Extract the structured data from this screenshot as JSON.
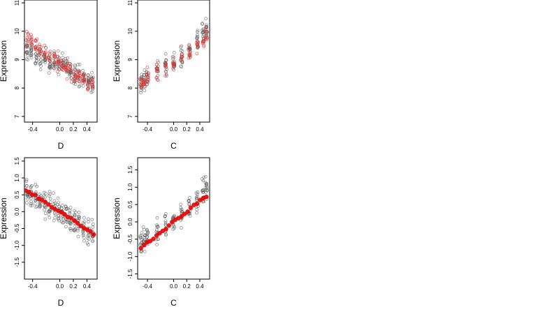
{
  "chart_data": [
    {
      "type": "scatter",
      "xlabel": "D",
      "ylabel": "Expression",
      "xlim": [
        -0.52,
        0.55
      ],
      "ylim": [
        6.8,
        11.1
      ],
      "x_ticks": [
        -0.4,
        0.0,
        0.2,
        0.4
      ],
      "x_tick_labels": [
        "-0.4",
        "0.0",
        "0.2",
        "0.4"
      ],
      "y_ticks": [
        7,
        8,
        9,
        10,
        11
      ],
      "y_tick_labels": [
        "7",
        "8",
        "9",
        "10",
        "11"
      ],
      "grid": false,
      "legend": "none",
      "x_columns": [
        -0.48,
        -0.42,
        -0.35,
        -0.29,
        -0.22,
        -0.15,
        -0.08,
        -0.02,
        0.04,
        0.1,
        0.16,
        0.22,
        0.28,
        0.35,
        0.42,
        0.48
      ],
      "series": [
        {
          "color": "#555555",
          "center": [
            9.3,
            9.25,
            9.15,
            9.05,
            9.0,
            8.95,
            8.9,
            8.85,
            8.8,
            8.75,
            8.65,
            8.55,
            8.45,
            8.35,
            8.25,
            8.15
          ],
          "spread": 0.6
        },
        {
          "color": "#e03030",
          "center": [
            9.8,
            9.7,
            9.55,
            9.4,
            9.25,
            9.1,
            9.0,
            8.9,
            8.8,
            8.7,
            8.6,
            8.5,
            8.4,
            8.3,
            8.2,
            8.1
          ],
          "spread": 0.5
        }
      ]
    },
    {
      "type": "scatter",
      "xlabel": "C",
      "ylabel": "Expression",
      "xlim": [
        -0.55,
        0.55
      ],
      "ylim": [
        6.8,
        11.1
      ],
      "x_ticks": [
        -0.4,
        0.0,
        0.2,
        0.4
      ],
      "x_tick_labels": [
        "-0.4",
        "0.0",
        "0.2",
        "0.4"
      ],
      "y_ticks": [
        7,
        8,
        9,
        10,
        11
      ],
      "y_tick_labels": [
        "7",
        "8",
        "9",
        "10",
        "11"
      ],
      "grid": false,
      "legend": "none",
      "x_columns": [
        -0.5,
        -0.45,
        -0.4,
        -0.25,
        -0.12,
        0.0,
        0.12,
        0.24,
        0.36,
        0.45,
        0.5
      ],
      "series": [
        {
          "color": "#555555",
          "center": [
            8.2,
            8.3,
            8.4,
            8.6,
            8.8,
            8.9,
            9.05,
            9.3,
            9.6,
            9.9,
            10.0
          ],
          "spread": 0.6
        },
        {
          "color": "#e03030",
          "center": [
            8.1,
            8.2,
            8.35,
            8.5,
            8.75,
            8.9,
            9.1,
            9.3,
            9.5,
            9.7,
            9.9
          ],
          "spread": 0.5
        }
      ]
    },
    {
      "type": "scatter",
      "xlabel": "D",
      "ylabel": "Expression",
      "xlim": [
        -0.52,
        0.55
      ],
      "ylim": [
        -2.0,
        1.6
      ],
      "x_ticks": [
        -0.4,
        0.0,
        0.2,
        0.4
      ],
      "x_tick_labels": [
        "-0.4",
        "0.0",
        "0.2",
        "0.4"
      ],
      "y_ticks": [
        -1.5,
        -1.0,
        -0.5,
        0.0,
        0.5,
        1.0,
        1.5
      ],
      "y_tick_labels": [
        "-1.5",
        "-1.0",
        "-0.5",
        "0.0",
        "0.5",
        "1.0",
        "1.5"
      ],
      "grid": false,
      "legend": "none",
      "x_columns": [
        -0.48,
        -0.42,
        -0.35,
        -0.29,
        -0.22,
        -0.15,
        -0.08,
        -0.02,
        0.04,
        0.1,
        0.16,
        0.22,
        0.28,
        0.35,
        0.42,
        0.48
      ],
      "series": [
        {
          "color": "#555555",
          "center": [
            0.6,
            0.5,
            0.4,
            0.3,
            0.2,
            0.15,
            0.1,
            0.0,
            -0.05,
            -0.1,
            -0.2,
            -0.3,
            -0.4,
            -0.5,
            -0.55,
            -0.65
          ],
          "spread": 0.6
        },
        {
          "color": "#e60000",
          "style": "filled",
          "trend": [
            [
              -0.5,
              0.65
            ],
            [
              0.5,
              -0.65
            ]
          ]
        }
      ]
    },
    {
      "type": "scatter",
      "xlabel": "C",
      "ylabel": "Expression",
      "xlim": [
        -0.55,
        0.55
      ],
      "ylim": [
        -1.65,
        1.85
      ],
      "x_ticks": [
        -0.4,
        0.0,
        0.2,
        0.4
      ],
      "x_tick_labels": [
        "-0.4",
        "0.0",
        "0.2",
        "0.4"
      ],
      "y_ticks": [
        -1.5,
        -1.0,
        -0.5,
        0.0,
        0.5,
        1.0,
        1.5
      ],
      "y_tick_labels": [
        "-1.5",
        "-1.0",
        "-0.5",
        "0.0",
        "0.5",
        "1.0",
        "1.5"
      ],
      "grid": false,
      "legend": "none",
      "x_columns": [
        -0.5,
        -0.45,
        -0.4,
        -0.25,
        -0.12,
        0.0,
        0.12,
        0.24,
        0.36,
        0.45,
        0.5
      ],
      "series": [
        {
          "color": "#555555",
          "center": [
            -0.5,
            -0.45,
            -0.4,
            -0.3,
            -0.15,
            0.0,
            0.2,
            0.4,
            0.55,
            0.85,
            1.0
          ],
          "spread": 0.6
        },
        {
          "color": "#e60000",
          "style": "filled",
          "trend": [
            [
              -0.5,
              -0.75
            ],
            [
              0.5,
              0.75
            ]
          ]
        }
      ]
    }
  ]
}
